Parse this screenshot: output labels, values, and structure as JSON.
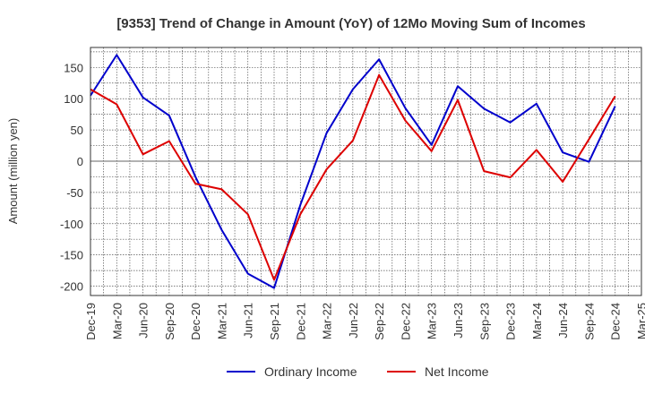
{
  "chart_data": {
    "type": "line",
    "title": "[9353]  Trend of Change in Amount (YoY) of 12Mo Moving Sum of Incomes",
    "xlabel": "",
    "ylabel": "Amount (million yen)",
    "ylim": [
      -215,
      182
    ],
    "yticks": [
      150,
      100,
      50,
      0,
      -50,
      -100,
      -150,
      -200
    ],
    "grid": true,
    "legend_position": "bottom",
    "categories": [
      "Dec-19",
      "Mar-20",
      "Jun-20",
      "Sep-20",
      "Dec-20",
      "Mar-21",
      "Jun-21",
      "Sep-21",
      "Dec-21",
      "Mar-22",
      "Jun-22",
      "Sep-22",
      "Dec-22",
      "Mar-23",
      "Jun-23",
      "Sep-23",
      "Dec-23",
      "Mar-24",
      "Jun-24",
      "Sep-24",
      "Dec-24",
      "Mar-25"
    ],
    "series": [
      {
        "name": "Ordinary Income",
        "color": "#0000cc",
        "values": [
          105,
          170,
          102,
          73,
          -25,
          -110,
          -180,
          -203,
          -70,
          45,
          115,
          163,
          85,
          26,
          120,
          84,
          62,
          92,
          14,
          -1,
          88,
          null
        ]
      },
      {
        "name": "Net Income",
        "color": "#dd0000",
        "values": [
          115,
          91,
          11,
          32,
          -36,
          -45,
          -85,
          -190,
          -85,
          -13,
          33,
          138,
          65,
          16,
          98,
          -16,
          -26,
          18,
          -33,
          35,
          104,
          null
        ]
      }
    ]
  }
}
